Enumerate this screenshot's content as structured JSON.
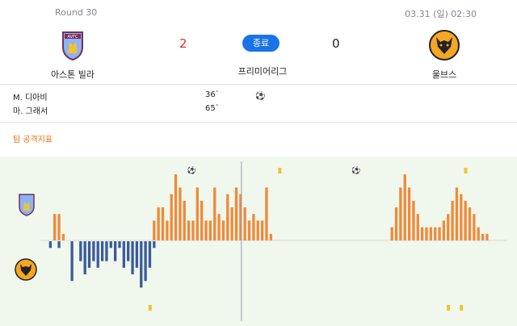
{
  "match": {
    "round": "Round 30",
    "datetime": "03.31 (일) 02:30",
    "status": "종료",
    "league": "프리미어리그",
    "home": {
      "name": "아스톤 빌라",
      "score": "2",
      "crest_text": "AVFC"
    },
    "away": {
      "name": "울브스",
      "score": "0"
    }
  },
  "scorers": [
    {
      "name": "M. 디아비",
      "minute": "36`"
    },
    {
      "name": "마. 그래서",
      "minute": "65`"
    }
  ],
  "stat_title": "팀 공격지표",
  "colors": {
    "home_bar": "#ef8a3a",
    "away_bar": "#3b5b9a",
    "card": "#f2c230",
    "accent": "#e8710a",
    "status": "#1a73e8"
  },
  "chart_data": {
    "type": "bar",
    "x_range": [
      1,
      96
    ],
    "halftime_after": 46,
    "home_pressure": [
      0,
      0,
      0,
      4,
      4,
      1,
      0,
      0,
      0,
      0,
      0,
      0,
      0,
      0,
      0,
      0,
      0,
      0,
      0,
      0,
      0,
      0,
      0,
      0,
      0,
      0,
      3,
      5,
      5,
      3,
      7,
      10,
      8,
      6,
      3,
      3,
      8,
      6,
      3,
      3,
      8,
      4,
      3,
      7,
      5,
      8,
      7,
      5,
      3,
      4,
      3,
      3,
      8,
      1,
      0,
      0,
      0,
      0,
      0,
      0,
      0,
      0,
      0,
      0,
      0,
      0,
      0,
      0,
      0,
      0,
      0,
      0,
      0,
      0,
      0,
      0,
      0,
      0,
      0,
      0,
      0,
      2,
      5,
      8,
      10,
      8,
      6,
      4,
      2,
      2,
      2,
      2,
      2,
      3,
      4,
      6,
      8,
      7,
      6,
      5,
      4,
      2,
      1,
      1,
      0,
      0,
      0,
      0
    ],
    "away_pressure": [
      0,
      0,
      1,
      0,
      1,
      0,
      0,
      6,
      0,
      3,
      5,
      4,
      3,
      4,
      3,
      3,
      1,
      3,
      1,
      4,
      3,
      5,
      4,
      7,
      6,
      4,
      1,
      0,
      0,
      0,
      0,
      0,
      0,
      0,
      0,
      0,
      0,
      0,
      0,
      0,
      0,
      0,
      0,
      0,
      0,
      0,
      0,
      0,
      0,
      0,
      0,
      0,
      0,
      0,
      0,
      0,
      0,
      0,
      0,
      0,
      0,
      0,
      0,
      0,
      0,
      0,
      0,
      0,
      0,
      0,
      0,
      0,
      0,
      0,
      0,
      0,
      0,
      0,
      0,
      0,
      0,
      0,
      0,
      0,
      0,
      0,
      0,
      0,
      0,
      0,
      0,
      0,
      0,
      0,
      0,
      0,
      0,
      0,
      0,
      0,
      0,
      0,
      0,
      0,
      0,
      0,
      0
    ],
    "home_goals_minutes": [
      36,
      65
    ],
    "home_cards_minutes": [
      47,
      90
    ],
    "away_cards_minutes": [
      26,
      86,
      89
    ]
  }
}
